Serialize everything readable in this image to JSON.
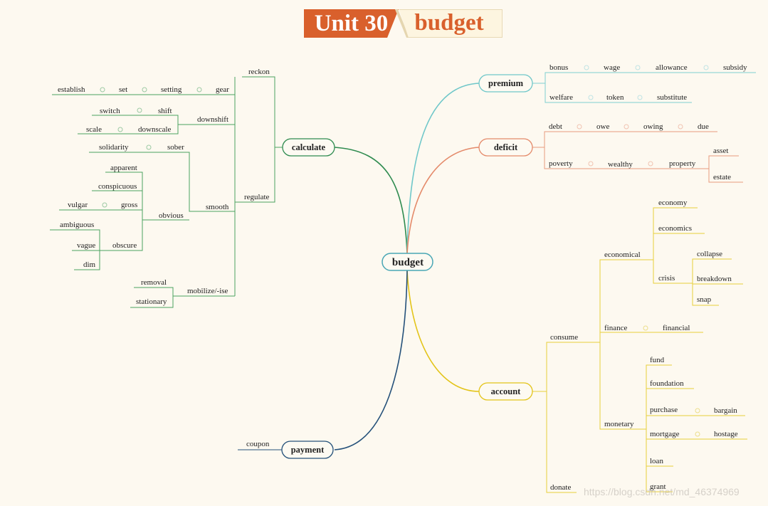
{
  "title": {
    "unit": "Unit 30",
    "word": "budget"
  },
  "central": "budget",
  "watermark": "https://blog.csdn.net/md_46374969",
  "colors": {
    "calculate": "#2e8b4f",
    "premium": "#6fc7c9",
    "deficit": "#e48a6a",
    "account": "#e3c419",
    "payment": "#25517a",
    "title_bg": "#d9602c"
  },
  "branches": {
    "calculate": "calculate",
    "premium": "premium",
    "deficit": "deficit",
    "account": "account",
    "payment": "payment"
  },
  "calculate_words": {
    "reckon": "reckon",
    "gear": "gear",
    "setting": "setting",
    "set": "set",
    "establish": "establish",
    "downshift": "downshift",
    "shift": "shift",
    "switch": "switch",
    "downscale": "downscale",
    "scale": "scale",
    "regulate": "regulate",
    "smooth": "smooth",
    "sober": "sober",
    "solidarity": "solidarity",
    "obvious": "obvious",
    "apparent": "apparent",
    "conspicuous": "conspicuous",
    "gross": "gross",
    "vulgar": "vulgar",
    "obscure": "obscure",
    "ambiguous": "ambiguous",
    "vague": "vague",
    "dim": "dim",
    "mobilize": "mobilize/-ise",
    "removal": "removal",
    "stationary": "stationary"
  },
  "premium_words": {
    "bonus": "bonus",
    "wage": "wage",
    "allowance": "allowance",
    "subsidy": "subsidy",
    "welfare": "welfare",
    "token": "token",
    "substitute": "substitute"
  },
  "deficit_words": {
    "debt": "debt",
    "owe": "owe",
    "owing": "owing",
    "due": "due",
    "poverty": "poverty",
    "wealthy": "wealthy",
    "property": "property",
    "asset": "asset",
    "estate": "estate"
  },
  "account_words": {
    "consume": "consume",
    "economical": "economical",
    "economy": "economy",
    "economics": "economics",
    "crisis": "crisis",
    "collapse": "collapse",
    "breakdown": "breakdown",
    "snap": "snap",
    "finance": "finance",
    "financial": "financial",
    "monetary": "monetary",
    "fund": "fund",
    "foundation": "foundation",
    "purchase": "purchase",
    "bargain": "bargain",
    "mortgage": "mortgage",
    "hostage": "hostage",
    "loan": "loan",
    "grant": "grant",
    "donate": "donate"
  },
  "payment_words": {
    "coupon": "coupon"
  }
}
